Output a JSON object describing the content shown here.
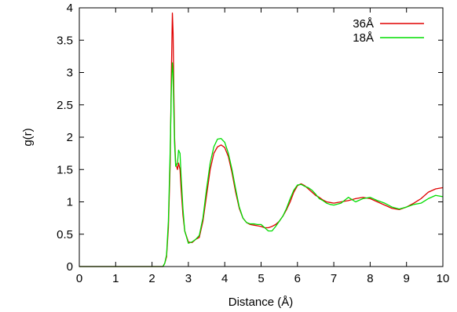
{
  "chart_data": {
    "type": "line",
    "xlabel": "Distance (Å)",
    "ylabel": "g(r)",
    "xlim": [
      0,
      10
    ],
    "ylim": [
      0,
      4
    ],
    "xticks": [
      "0",
      "1",
      "2",
      "3",
      "4",
      "5",
      "6",
      "7",
      "8",
      "9",
      "10"
    ],
    "yticks": [
      "0",
      "0.5",
      "1",
      "1.5",
      "2",
      "2.5",
      "3",
      "3.5",
      "4"
    ],
    "grid": false,
    "legend_position": "top-right",
    "series": [
      {
        "name": "36Å",
        "color": "#e00000",
        "x": [
          0,
          2.0,
          2.3,
          2.35,
          2.4,
          2.45,
          2.5,
          2.53,
          2.56,
          2.58,
          2.6,
          2.62,
          2.65,
          2.7,
          2.73,
          2.77,
          2.8,
          2.85,
          2.9,
          3.0,
          3.1,
          3.2,
          3.3,
          3.4,
          3.5,
          3.6,
          3.7,
          3.8,
          3.9,
          4.0,
          4.1,
          4.2,
          4.3,
          4.4,
          4.5,
          4.6,
          4.7,
          4.8,
          4.9,
          5.0,
          5.1,
          5.2,
          5.3,
          5.4,
          5.5,
          5.6,
          5.7,
          5.8,
          5.9,
          6.0,
          6.1,
          6.2,
          6.3,
          6.4,
          6.5,
          6.6,
          6.7,
          6.8,
          6.9,
          7.0,
          7.2,
          7.4,
          7.6,
          7.8,
          8.0,
          8.2,
          8.4,
          8.6,
          8.8,
          9.0,
          9.2,
          9.4,
          9.6,
          9.8,
          10.0
        ],
        "y": [
          0,
          0,
          0,
          0.05,
          0.15,
          0.6,
          1.6,
          2.9,
          3.92,
          3.6,
          2.7,
          2.0,
          1.6,
          1.5,
          1.6,
          1.5,
          1.2,
          0.8,
          0.55,
          0.38,
          0.37,
          0.42,
          0.45,
          0.7,
          1.1,
          1.5,
          1.75,
          1.85,
          1.88,
          1.84,
          1.7,
          1.45,
          1.15,
          0.9,
          0.75,
          0.68,
          0.65,
          0.64,
          0.63,
          0.62,
          0.6,
          0.6,
          0.62,
          0.65,
          0.7,
          0.78,
          0.88,
          1.0,
          1.15,
          1.25,
          1.28,
          1.25,
          1.2,
          1.15,
          1.1,
          1.07,
          1.03,
          1.0,
          0.99,
          0.98,
          1.0,
          1.02,
          1.05,
          1.07,
          1.05,
          1.0,
          0.95,
          0.9,
          0.88,
          0.92,
          0.98,
          1.05,
          1.15,
          1.2,
          1.22
        ]
      },
      {
        "name": "18Å",
        "color": "#00dd00",
        "x": [
          0,
          2.0,
          2.3,
          2.35,
          2.4,
          2.45,
          2.5,
          2.53,
          2.56,
          2.58,
          2.6,
          2.62,
          2.65,
          2.7,
          2.73,
          2.77,
          2.8,
          2.85,
          2.9,
          3.0,
          3.1,
          3.2,
          3.3,
          3.4,
          3.5,
          3.6,
          3.7,
          3.8,
          3.9,
          4.0,
          4.1,
          4.2,
          4.3,
          4.4,
          4.5,
          4.6,
          4.7,
          4.8,
          4.9,
          5.0,
          5.1,
          5.2,
          5.3,
          5.4,
          5.5,
          5.6,
          5.7,
          5.8,
          5.9,
          6.0,
          6.1,
          6.2,
          6.3,
          6.4,
          6.5,
          6.6,
          6.7,
          6.8,
          6.9,
          7.0,
          7.2,
          7.4,
          7.6,
          7.8,
          8.0,
          8.2,
          8.4,
          8.6,
          8.8,
          9.0,
          9.2,
          9.4,
          9.6,
          9.8,
          10.0
        ],
        "y": [
          0,
          0,
          0,
          0.05,
          0.18,
          0.7,
          1.8,
          2.7,
          3.15,
          3.0,
          2.4,
          1.9,
          1.55,
          1.6,
          1.8,
          1.75,
          1.4,
          0.9,
          0.55,
          0.36,
          0.38,
          0.42,
          0.48,
          0.75,
          1.2,
          1.6,
          1.85,
          1.97,
          1.98,
          1.92,
          1.75,
          1.5,
          1.2,
          0.92,
          0.75,
          0.68,
          0.66,
          0.66,
          0.65,
          0.65,
          0.6,
          0.55,
          0.55,
          0.62,
          0.7,
          0.78,
          0.9,
          1.05,
          1.18,
          1.26,
          1.27,
          1.24,
          1.22,
          1.18,
          1.12,
          1.05,
          1.02,
          0.98,
          0.96,
          0.95,
          0.98,
          1.07,
          1.0,
          1.05,
          1.07,
          1.02,
          0.98,
          0.92,
          0.89,
          0.92,
          0.96,
          0.98,
          1.05,
          1.1,
          1.08
        ]
      }
    ]
  }
}
